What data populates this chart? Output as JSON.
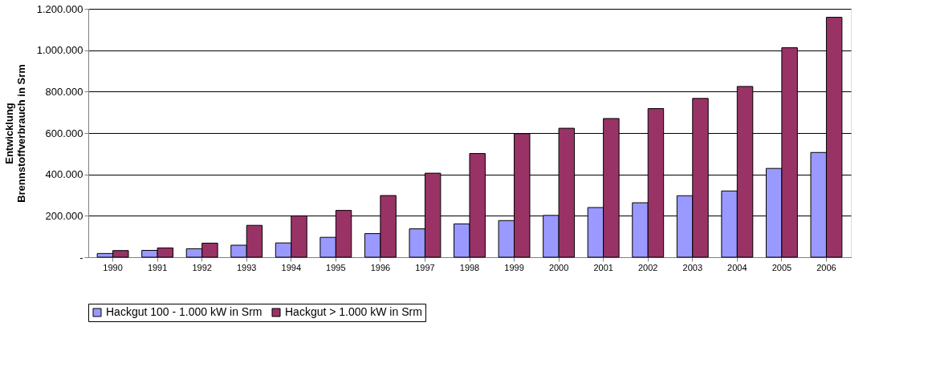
{
  "chart_data": {
    "type": "bar",
    "ylabel": "Entwicklung\nBrennstoffverbrauch in Srm",
    "categories": [
      "1990",
      "1991",
      "1992",
      "1993",
      "1994",
      "1995",
      "1996",
      "1997",
      "1998",
      "1999",
      "2000",
      "2001",
      "2002",
      "2003",
      "2004",
      "2005",
      "2006"
    ],
    "series": [
      {
        "name": "Hackgut 100 - 1.000 kW in Srm",
        "color": "#9999ff",
        "values": [
          18000,
          33000,
          41000,
          58000,
          69000,
          96000,
          114000,
          137000,
          161000,
          177000,
          202000,
          240000,
          263000,
          297000,
          320000,
          429000,
          506000
        ]
      },
      {
        "name": "Hackgut > 1.000 kW in Srm",
        "color": "#993366",
        "values": [
          32000,
          45000,
          68000,
          154000,
          200000,
          226000,
          298000,
          406000,
          501000,
          597000,
          623000,
          670000,
          718000,
          767000,
          825000,
          1012000,
          1159000
        ]
      }
    ],
    "ylim": [
      0,
      1200000
    ],
    "yticks": [
      {
        "value": 0,
        "label": "-"
      },
      {
        "value": 200000,
        "label": "200.000"
      },
      {
        "value": 400000,
        "label": "400.000"
      },
      {
        "value": 600000,
        "label": "600.000"
      },
      {
        "value": 800000,
        "label": "800.000"
      },
      {
        "value": 1000000,
        "label": "1.000.000"
      },
      {
        "value": 1200000,
        "label": "1.200.000"
      }
    ],
    "grid": "y",
    "legend": "bottom"
  }
}
